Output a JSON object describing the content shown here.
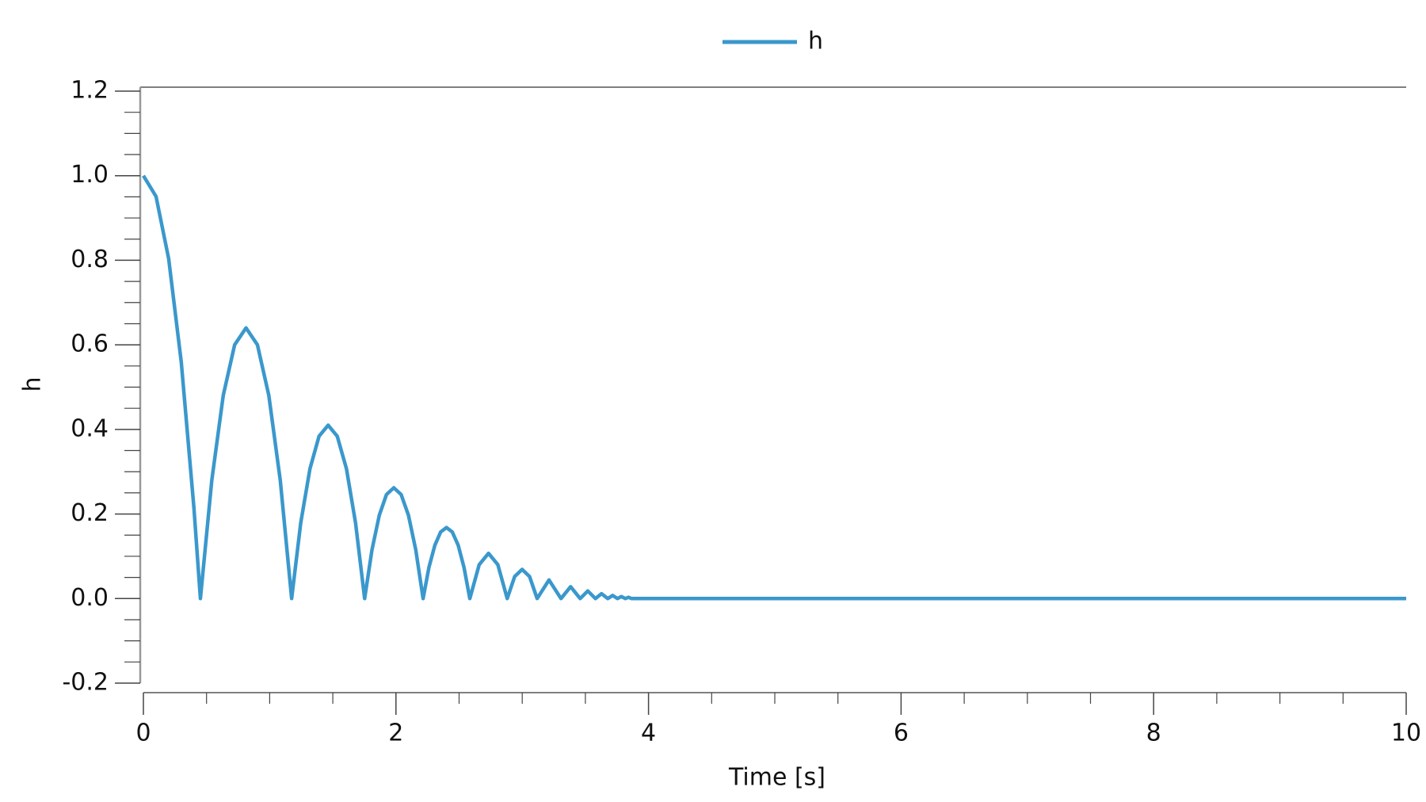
{
  "chart_data": {
    "type": "line",
    "xlabel": "Time [s]",
    "ylabel": "h",
    "x": [
      0,
      0.1,
      0.2,
      0.3,
      0.4,
      0.4515,
      0.5418,
      0.6322,
      0.7225,
      0.8128,
      0.9031,
      0.9934,
      1.0838,
      1.174,
      1.246,
      1.319,
      1.391,
      1.463,
      1.535,
      1.608,
      1.68,
      1.752,
      1.81,
      1.868,
      1.925,
      1.983,
      2.041,
      2.099,
      2.157,
      2.215,
      2.261,
      2.308,
      2.354,
      2.4,
      2.446,
      2.493,
      2.539,
      2.585,
      2.659,
      2.733,
      2.807,
      2.881,
      2.94,
      2.999,
      3.058,
      3.118,
      3.212,
      3.307,
      3.383,
      3.459,
      3.519,
      3.58,
      3.628,
      3.677,
      3.716,
      3.754,
      3.785,
      3.816,
      3.841,
      3.866,
      4.06,
      10
    ],
    "series": [
      {
        "name": "h",
        "color": "#3a98cc",
        "values": [
          1,
          0.951,
          0.804,
          0.559,
          0.215,
          0,
          0.28,
          0.48,
          0.6,
          0.64,
          0.6,
          0.48,
          0.28,
          0,
          0.179,
          0.307,
          0.384,
          0.41,
          0.384,
          0.307,
          0.179,
          0,
          0.115,
          0.197,
          0.246,
          0.262,
          0.246,
          0.197,
          0.115,
          0,
          0.0735,
          0.126,
          0.1575,
          0.168,
          0.1575,
          0.126,
          0.0735,
          0,
          0.08,
          0.107,
          0.08,
          0,
          0.052,
          0.069,
          0.052,
          0,
          0.044,
          0,
          0.028,
          0,
          0.018,
          0,
          0.0115,
          0,
          0.0074,
          0,
          0.0047,
          0,
          0.003,
          0,
          0,
          0
        ]
      }
    ],
    "xlim": [
      0,
      10
    ],
    "xticks": [
      0,
      2,
      4,
      6,
      8,
      10
    ],
    "x_minor_ticks": [
      0.5,
      1,
      1.5,
      2.5,
      3,
      3.5,
      4.5,
      5,
      5.5,
      6.5,
      7,
      7.5,
      8.5,
      9,
      9.5
    ],
    "ylim": [
      -0.2,
      1.2
    ],
    "yticks": [
      -0.2,
      {
        "value": 0,
        "label": "0.0"
      },
      0.2,
      0.4,
      0.6,
      0.8,
      {
        "value": 1,
        "label": "1.0"
      },
      1.2
    ],
    "y_minor_ticks": [
      -0.15,
      -0.1,
      -0.05,
      0.05,
      0.1,
      0.15,
      0.25,
      0.3,
      0.35,
      0.45,
      0.5,
      0.55,
      0.65,
      0.7,
      0.75,
      0.85,
      0.9,
      0.95,
      1.05,
      1.1,
      1.15
    ],
    "grid": false,
    "legend": "top"
  }
}
